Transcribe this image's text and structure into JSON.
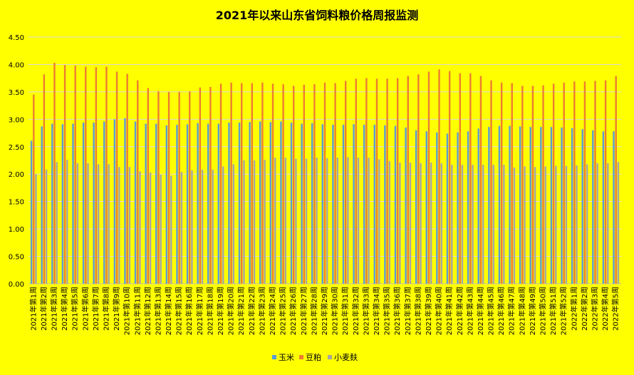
{
  "chart_data": {
    "type": "bar",
    "title": "2021年以来山东省饲料粮价格周报监测",
    "xlabel": "",
    "ylabel": "",
    "ylim": [
      0,
      4.5
    ],
    "yticks": [
      "0.00",
      "0.50",
      "1.00",
      "1.50",
      "2.00",
      "2.50",
      "3.00",
      "3.50",
      "4.00",
      "4.50"
    ],
    "grid": true,
    "legend_position": "bottom",
    "categories": [
      "2021年第1周",
      "2021年第2周",
      "2021年第3周",
      "2021年第4周",
      "2021年第5周",
      "2021年第6周",
      "2021年第7周",
      "2021年第8周",
      "2021年第9周",
      "2021年第10周",
      "2021年第11周",
      "2021年第12周",
      "2021年第13周",
      "2021年第14周",
      "2021年第15周",
      "2021年第16周",
      "2021年第17周",
      "2021年第18周",
      "2021年第19周",
      "2021年第20周",
      "2021年第21周",
      "2021年第22周",
      "2021年第23周",
      "2021年第24周",
      "2021年第25周",
      "2021年第26周",
      "2021年第27周",
      "2021年第28周",
      "2021年第29周",
      "2021年第30周",
      "2021年第31周",
      "2021年第32周",
      "2021年第33周",
      "2021年第34周",
      "2021年第35周",
      "2021年第36周",
      "2021年第37周",
      "2021年第38周",
      "2021年第39周",
      "2021年第40周",
      "2021年第41周",
      "2021年第42周",
      "2021年第43周",
      "2021年第44周",
      "2021年第45周",
      "2021年第46周",
      "2021年第47周",
      "2021年第48周",
      "2021年第49周",
      "2021年第50周",
      "2021年第51周",
      "2021年第52周",
      "2022年第1周",
      "2022年第2周",
      "2022年第3周",
      "2022年第4周",
      "2022年第5周"
    ],
    "series": [
      {
        "name": "玉米",
        "color": "#5B9BD5",
        "values": [
          2.61,
          2.87,
          2.92,
          2.91,
          2.92,
          2.94,
          2.94,
          2.96,
          3.0,
          3.02,
          2.96,
          2.92,
          2.92,
          2.89,
          2.9,
          2.91,
          2.93,
          2.92,
          2.92,
          2.94,
          2.94,
          2.95,
          2.96,
          2.95,
          2.96,
          2.94,
          2.92,
          2.93,
          2.91,
          2.9,
          2.9,
          2.91,
          2.9,
          2.9,
          2.89,
          2.88,
          2.85,
          2.8,
          2.78,
          2.76,
          2.74,
          2.76,
          2.78,
          2.83,
          2.86,
          2.88,
          2.88,
          2.87,
          2.86,
          2.86,
          2.86,
          2.85,
          2.84,
          2.82,
          2.8,
          2.78,
          2.78
        ]
      },
      {
        "name": "豆粕",
        "color": "#ED7D31",
        "values": [
          3.45,
          3.82,
          4.03,
          3.99,
          3.98,
          3.96,
          3.95,
          3.96,
          3.87,
          3.83,
          3.71,
          3.57,
          3.51,
          3.5,
          3.5,
          3.51,
          3.58,
          3.59,
          3.65,
          3.67,
          3.66,
          3.66,
          3.67,
          3.65,
          3.64,
          3.61,
          3.63,
          3.64,
          3.67,
          3.66,
          3.7,
          3.74,
          3.75,
          3.74,
          3.74,
          3.75,
          3.79,
          3.82,
          3.87,
          3.91,
          3.88,
          3.84,
          3.84,
          3.79,
          3.71,
          3.67,
          3.66,
          3.61,
          3.61,
          3.62,
          3.65,
          3.67,
          3.69,
          3.69,
          3.7,
          3.71,
          3.79
        ]
      },
      {
        "name": "小麦麸",
        "color": "#A5A5A5",
        "values": [
          2.0,
          2.08,
          2.22,
          2.26,
          2.2,
          2.2,
          2.18,
          2.18,
          2.13,
          2.13,
          2.05,
          2.03,
          1.99,
          1.97,
          2.04,
          2.07,
          2.08,
          2.08,
          2.14,
          2.18,
          2.25,
          2.25,
          2.26,
          2.3,
          2.3,
          2.28,
          2.28,
          2.3,
          2.29,
          2.3,
          2.31,
          2.3,
          2.3,
          2.27,
          2.24,
          2.21,
          2.21,
          2.2,
          2.21,
          2.2,
          2.17,
          2.17,
          2.17,
          2.17,
          2.17,
          2.17,
          2.12,
          2.14,
          2.13,
          2.14,
          2.15,
          2.15,
          2.16,
          2.18,
          2.2,
          2.2,
          2.22
        ]
      }
    ]
  }
}
